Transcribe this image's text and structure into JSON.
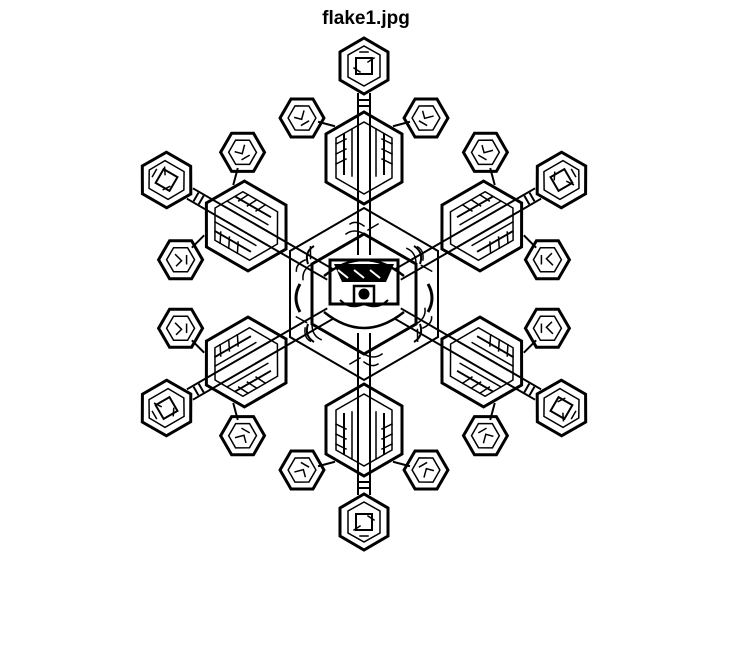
{
  "figure": {
    "title": "flake1.jpg",
    "foreground_color": "#000000",
    "background_color": "#ffffff"
  },
  "image": {
    "subject": "snowflake-icon"
  }
}
